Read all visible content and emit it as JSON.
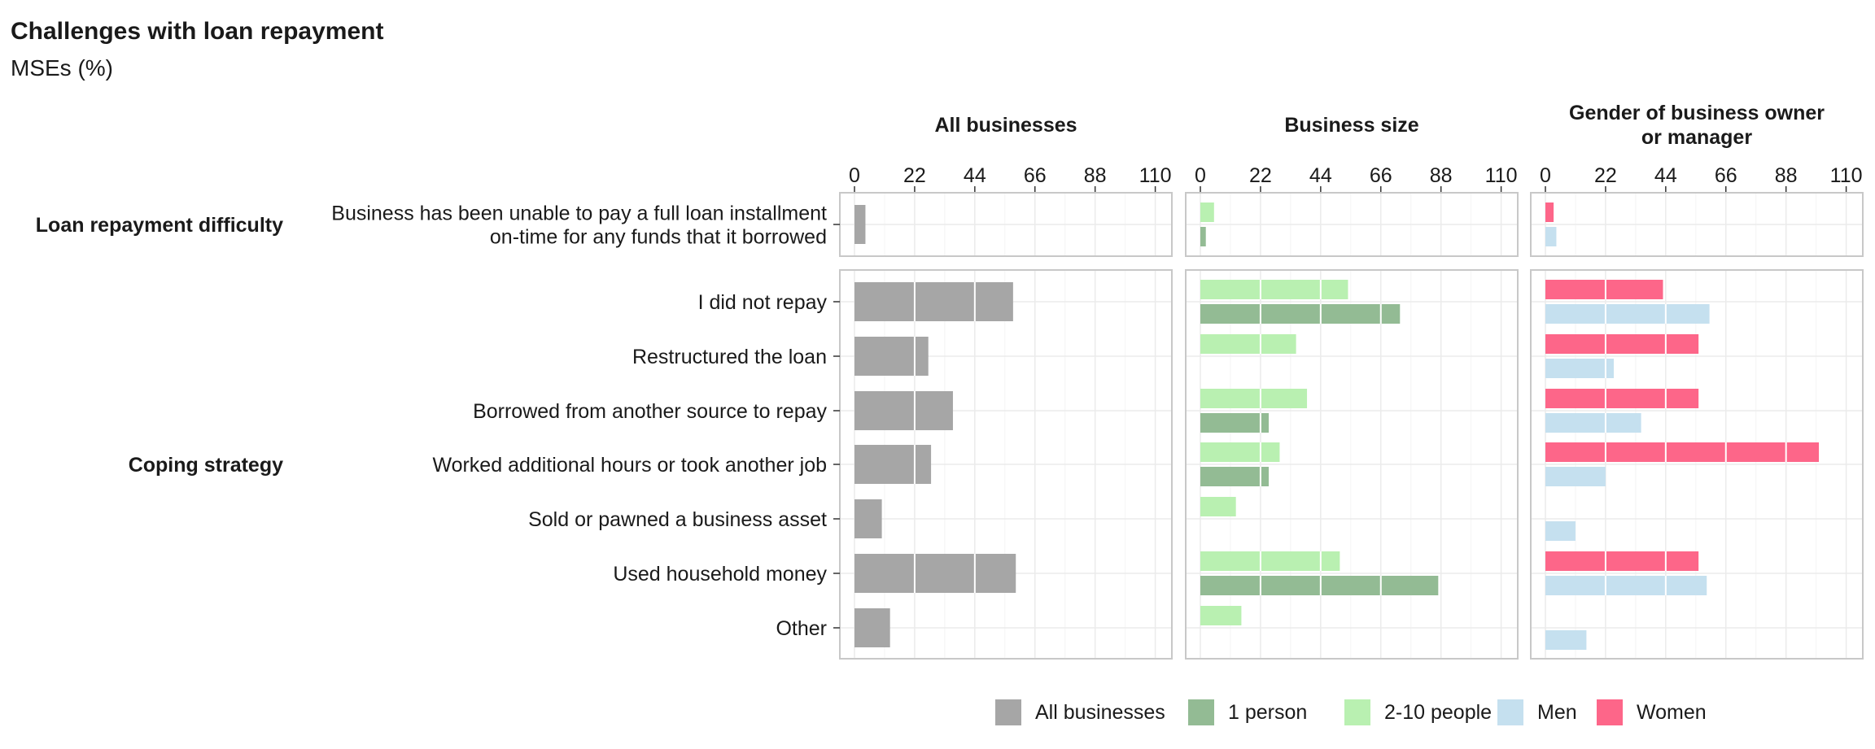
{
  "chart_data": {
    "type": "bar",
    "orientation": "horizontal",
    "title": "Challenges with loan repayment",
    "subtitle": "MSEs (%)",
    "x_ticks": [
      0,
      22,
      44,
      66,
      88,
      110
    ],
    "xlim": [
      0,
      115
    ],
    "grid": true,
    "legend_position": "bottom",
    "row_groups": [
      {
        "label": "Loan repayment difficulty",
        "rows": [
          [
            "Business has been unable to pay a full loan installment",
            "on-time for any funds that it borrowed"
          ]
        ]
      },
      {
        "label": "Coping strategy",
        "rows": [
          [
            "I did not repay"
          ],
          [
            "Restructured the loan"
          ],
          [
            "Borrowed from another source to repay"
          ],
          [
            "Worked additional hours or took another job"
          ],
          [
            "Sold or pawned a business asset"
          ],
          [
            "Used household money"
          ],
          [
            "Other"
          ]
        ]
      }
    ],
    "panels": [
      {
        "title": [
          "All businesses"
        ],
        "series": [
          {
            "name": "All businesses",
            "color": "#a6a6a6",
            "values": [
              [
                4
              ],
              [
                58,
                27,
                36,
                28,
                10,
                59,
                13
              ]
            ]
          }
        ]
      },
      {
        "title": [
          "Business size"
        ],
        "series": [
          {
            "name": "2-10 people",
            "color": "#b9f0b1",
            "values": [
              [
                5
              ],
              [
                54,
                35,
                39,
                29,
                13,
                51,
                15
              ]
            ]
          },
          {
            "name": "1 person",
            "color": "#93bb94",
            "values": [
              [
                2
              ],
              [
                73,
                null,
                25,
                25,
                null,
                87,
                null
              ]
            ]
          }
        ]
      },
      {
        "title": [
          "Gender of business owner",
          "or manager"
        ],
        "series": [
          {
            "name": "Women",
            "color": "#fd6689",
            "values": [
              [
                3
              ],
              [
                43,
                56,
                56,
                100,
                null,
                56,
                null
              ]
            ]
          },
          {
            "name": "Men",
            "color": "#c5e0ef",
            "values": [
              [
                4
              ],
              [
                60,
                25,
                35,
                22,
                11,
                59,
                15
              ]
            ]
          }
        ]
      }
    ],
    "legend": [
      {
        "name": "All businesses",
        "color": "#a6a6a6"
      },
      {
        "name": "1 person",
        "color": "#93bb94"
      },
      {
        "name": "2-10 people",
        "color": "#b9f0b1"
      },
      {
        "name": "Men",
        "color": "#c5e0ef"
      },
      {
        "name": "Women",
        "color": "#fd6689"
      }
    ]
  }
}
